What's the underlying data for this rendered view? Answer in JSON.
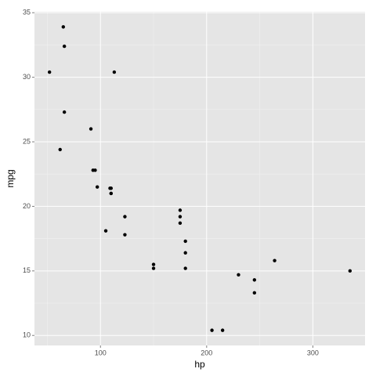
{
  "chart_data": {
    "type": "scatter",
    "x_label": "hp",
    "y_label": "mpg",
    "x": [
      110,
      110,
      93,
      110,
      175,
      105,
      245,
      62,
      95,
      123,
      123,
      180,
      180,
      180,
      205,
      215,
      230,
      66,
      52,
      65,
      97,
      150,
      150,
      245,
      175,
      66,
      91,
      113,
      264,
      175,
      335,
      109
    ],
    "values": [
      21.0,
      21.0,
      22.8,
      21.4,
      18.7,
      18.1,
      14.3,
      24.4,
      22.8,
      19.2,
      17.8,
      16.4,
      17.3,
      15.2,
      10.4,
      10.4,
      14.7,
      32.4,
      30.4,
      33.9,
      21.5,
      15.5,
      15.2,
      13.3,
      19.2,
      27.3,
      26.0,
      30.4,
      15.8,
      19.7,
      15.0,
      21.4
    ],
    "color": "#000000",
    "xlim": [
      37.85,
      349.15
    ],
    "ylim": [
      9.225,
      35.075
    ],
    "xticks": [
      100,
      200,
      300
    ],
    "yticks": [
      10,
      15,
      20,
      25,
      30,
      35
    ],
    "grid": true,
    "minor_grid": true
  }
}
